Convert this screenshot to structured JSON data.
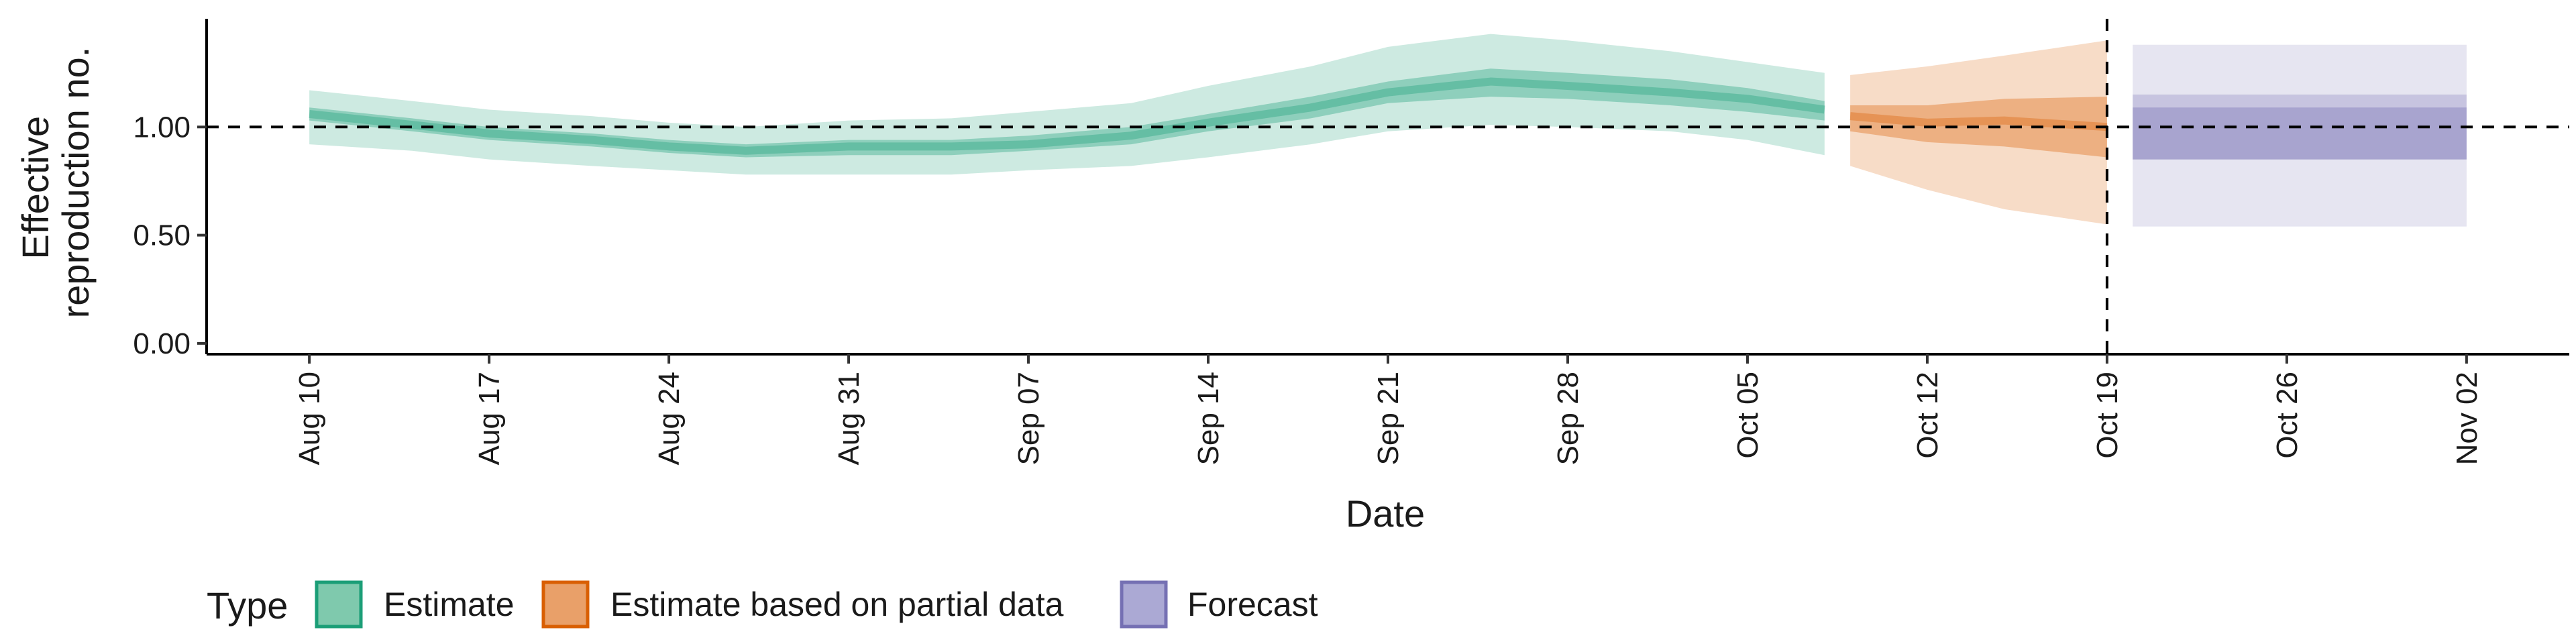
{
  "chart_data": {
    "type": "area",
    "xlabel": "Date",
    "ylabel_lines": [
      "Effective",
      "reproduction no."
    ],
    "x_ticks": [
      "Aug 10",
      "Aug 17",
      "Aug 24",
      "Aug 31",
      "Sep 07",
      "Sep 14",
      "Sep 21",
      "Sep 28",
      "Oct 05",
      "Oct 12",
      "Oct 19",
      "Oct 26",
      "Nov 02"
    ],
    "y_ticks": [
      "0.00",
      "0.50",
      "1.00"
    ],
    "y_tick_values": [
      0,
      0.5,
      1.0
    ],
    "ylim": [
      -0.05,
      1.5
    ],
    "xlim_days_from_aug10": [
      -4,
      88
    ],
    "reference_line_y": 1.0,
    "forecast_date": "Oct 19",
    "series": [
      {
        "name": "Estimate",
        "color": "#1b9e77",
        "x": [
          "Aug 10",
          "Aug 14",
          "Aug 17",
          "Aug 21",
          "Aug 24",
          "Aug 27",
          "Aug 31",
          "Sep 04",
          "Sep 07",
          "Sep 11",
          "Sep 14",
          "Sep 18",
          "Sep 21",
          "Sep 25",
          "Sep 28",
          "Oct 02",
          "Oct 05",
          "Oct 08"
        ],
        "median": [
          1.06,
          1.01,
          0.97,
          0.94,
          0.91,
          0.89,
          0.91,
          0.91,
          0.92,
          0.96,
          1.02,
          1.09,
          1.16,
          1.21,
          1.19,
          1.16,
          1.13,
          1.08
        ],
        "ci50": [
          [
            1.03,
            1.09
          ],
          [
            0.98,
            1.04
          ],
          [
            0.94,
            1.0
          ],
          [
            0.91,
            0.97
          ],
          [
            0.88,
            0.94
          ],
          [
            0.86,
            0.92
          ],
          [
            0.87,
            0.94
          ],
          [
            0.87,
            0.94
          ],
          [
            0.89,
            0.96
          ],
          [
            0.92,
            1.0
          ],
          [
            0.98,
            1.06
          ],
          [
            1.04,
            1.14
          ],
          [
            1.11,
            1.21
          ],
          [
            1.14,
            1.27
          ],
          [
            1.13,
            1.25
          ],
          [
            1.1,
            1.22
          ],
          [
            1.07,
            1.18
          ],
          [
            1.03,
            1.12
          ]
        ],
        "ci90": [
          [
            0.92,
            1.17
          ],
          [
            0.89,
            1.12
          ],
          [
            0.85,
            1.08
          ],
          [
            0.82,
            1.05
          ],
          [
            0.8,
            1.02
          ],
          [
            0.78,
            1.0
          ],
          [
            0.78,
            1.03
          ],
          [
            0.78,
            1.04
          ],
          [
            0.8,
            1.07
          ],
          [
            0.82,
            1.11
          ],
          [
            0.86,
            1.19
          ],
          [
            0.92,
            1.28
          ],
          [
            0.98,
            1.37
          ],
          [
            1.01,
            1.43
          ],
          [
            1.0,
            1.4
          ],
          [
            0.98,
            1.35
          ],
          [
            0.94,
            1.3
          ],
          [
            0.87,
            1.25
          ]
        ]
      },
      {
        "name": "Estimate based on partial data",
        "color": "#d95f02",
        "x": [
          "Oct 09",
          "Oct 12",
          "Oct 15",
          "Oct 19"
        ],
        "median": [
          1.05,
          1.02,
          1.03,
          1.0
        ],
        "ci50": [
          [
            0.98,
            1.1
          ],
          [
            0.93,
            1.1
          ],
          [
            0.91,
            1.13
          ],
          [
            0.86,
            1.14
          ]
        ],
        "ci90": [
          [
            0.82,
            1.24
          ],
          [
            0.71,
            1.28
          ],
          [
            0.62,
            1.33
          ],
          [
            0.55,
            1.4
          ]
        ]
      },
      {
        "name": "Forecast",
        "color": "#7570b3",
        "x": [
          "Oct 20",
          "Nov 02"
        ],
        "median": [
          1.0,
          1.0
        ],
        "ci50": [
          [
            0.85,
            1.09
          ],
          [
            0.85,
            1.09
          ]
        ],
        "ci75": [
          [
            0.85,
            1.15
          ],
          [
            0.85,
            1.15
          ]
        ],
        "ci90": [
          [
            0.54,
            1.38
          ],
          [
            0.54,
            1.38
          ]
        ]
      }
    ],
    "legend": {
      "title": "Type",
      "position": "bottom-left",
      "items": [
        {
          "label": "Estimate",
          "fill": "#7fc9ad",
          "stroke": "#1b9e77"
        },
        {
          "label": "Estimate based on partial data",
          "fill": "#e9a069",
          "stroke": "#d95f02"
        },
        {
          "label": "Forecast",
          "fill": "#aba9d4",
          "stroke": "#7570b3"
        }
      ]
    }
  }
}
